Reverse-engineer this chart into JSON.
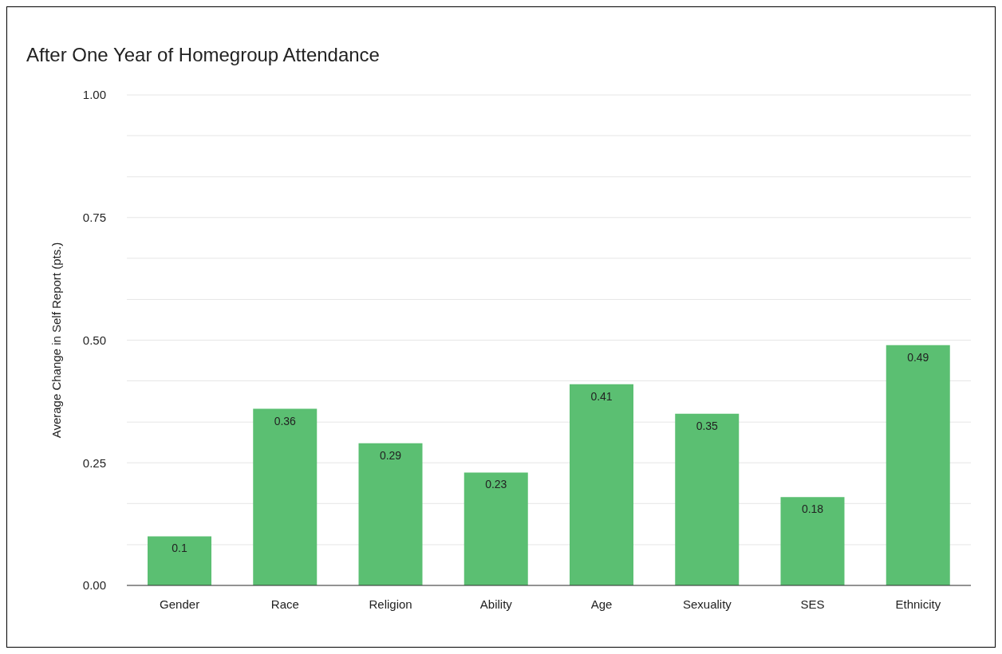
{
  "chart_data": {
    "type": "bar",
    "title": "After One Year of Homegroup Attendance",
    "ylabel": "Average Change in Self Report (pts.)",
    "categories": [
      "Gender",
      "Race",
      "Religion",
      "Ability",
      "Age",
      "Sexuality",
      "SES",
      "Ethnicity"
    ],
    "values": [
      0.1,
      0.36,
      0.29,
      0.23,
      0.41,
      0.35,
      0.18,
      0.49
    ],
    "color": "#5bbf72",
    "ylim": [
      0,
      1
    ],
    "yticks": [
      {
        "value": 0,
        "label": "0.00"
      },
      {
        "value": 0.083,
        "label": null
      },
      {
        "value": 0.167,
        "label": null
      },
      {
        "value": 0.25,
        "label": "0.25"
      },
      {
        "value": 0.333,
        "label": null
      },
      {
        "value": 0.417,
        "label": null
      },
      {
        "value": 0.5,
        "label": "0.50"
      },
      {
        "value": 0.583,
        "label": null
      },
      {
        "value": 0.667,
        "label": null
      },
      {
        "value": 0.75,
        "label": "0.75"
      },
      {
        "value": 0.833,
        "label": null
      },
      {
        "value": 0.917,
        "label": null
      },
      {
        "value": 1,
        "label": "1.00"
      }
    ],
    "grid": "y",
    "data_labels": true
  }
}
